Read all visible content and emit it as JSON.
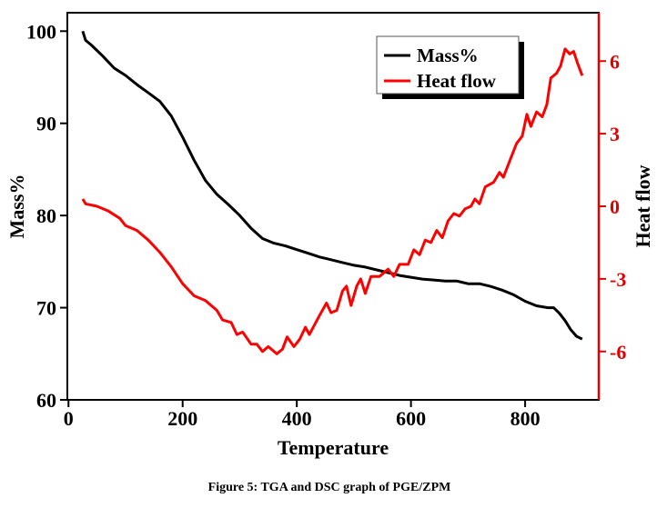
{
  "chart_data": {
    "type": "line",
    "caption": "Figure 5: TGA and DSC graph of PGE/ZPM",
    "xlabel": "Temperature",
    "ylabel": "Mass%",
    "y2label": "Heat flow",
    "xlim": [
      -2,
      929
    ],
    "ylim": [
      60,
      102
    ],
    "y2lim": [
      -8,
      8
    ],
    "xticks": [
      0,
      200,
      400,
      600,
      800
    ],
    "yticks": [
      60,
      70,
      80,
      90,
      100
    ],
    "y2ticks": [
      -6,
      -3,
      0,
      3,
      6
    ],
    "grid": false,
    "legend_position": "top-right",
    "colors": {
      "mass": "#000000",
      "heat": "#ff0000",
      "right_axis": "#e00000"
    },
    "series": [
      {
        "name": "Mass%",
        "axis": "left",
        "points": [
          [
            25,
            100
          ],
          [
            30,
            99
          ],
          [
            40,
            98.5
          ],
          [
            60,
            97.3
          ],
          [
            80,
            96
          ],
          [
            100,
            95.2
          ],
          [
            120,
            94.2
          ],
          [
            140,
            93.3
          ],
          [
            160,
            92.4
          ],
          [
            180,
            90.8
          ],
          [
            200,
            88.5
          ],
          [
            220,
            86
          ],
          [
            240,
            83.8
          ],
          [
            260,
            82.3
          ],
          [
            280,
            81.2
          ],
          [
            300,
            80
          ],
          [
            320,
            78.6
          ],
          [
            340,
            77.5
          ],
          [
            360,
            77
          ],
          [
            380,
            76.7
          ],
          [
            400,
            76.3
          ],
          [
            420,
            75.9
          ],
          [
            440,
            75.5
          ],
          [
            460,
            75.2
          ],
          [
            480,
            74.9
          ],
          [
            500,
            74.6
          ],
          [
            520,
            74.4
          ],
          [
            540,
            74.1
          ],
          [
            560,
            73.8
          ],
          [
            580,
            73.5
          ],
          [
            600,
            73.3
          ],
          [
            620,
            73.1
          ],
          [
            640,
            73
          ],
          [
            660,
            72.9
          ],
          [
            680,
            72.9
          ],
          [
            700,
            72.6
          ],
          [
            720,
            72.6
          ],
          [
            740,
            72.3
          ],
          [
            760,
            71.9
          ],
          [
            780,
            71.4
          ],
          [
            800,
            70.7
          ],
          [
            820,
            70.2
          ],
          [
            840,
            70
          ],
          [
            850,
            70
          ],
          [
            860,
            69.4
          ],
          [
            870,
            68.6
          ],
          [
            880,
            67.6
          ],
          [
            890,
            66.9
          ],
          [
            900,
            66.6
          ]
        ]
      },
      {
        "name": "Heat flow",
        "axis": "right",
        "points": [
          [
            25,
            0.3
          ],
          [
            30,
            0.1
          ],
          [
            50,
            0
          ],
          [
            70,
            -0.2
          ],
          [
            90,
            -0.5
          ],
          [
            100,
            -0.8
          ],
          [
            120,
            -1.0
          ],
          [
            140,
            -1.4
          ],
          [
            160,
            -1.9
          ],
          [
            180,
            -2.5
          ],
          [
            200,
            -3.2
          ],
          [
            220,
            -3.7
          ],
          [
            240,
            -3.9
          ],
          [
            260,
            -4.3
          ],
          [
            270,
            -4.7
          ],
          [
            285,
            -4.8
          ],
          [
            295,
            -5.3
          ],
          [
            305,
            -5.2
          ],
          [
            320,
            -5.7
          ],
          [
            330,
            -5.7
          ],
          [
            340,
            -6.0
          ],
          [
            350,
            -5.8
          ],
          [
            365,
            -6.1
          ],
          [
            375,
            -5.9
          ],
          [
            383,
            -5.4
          ],
          [
            395,
            -5.8
          ],
          [
            405,
            -5.5
          ],
          [
            415,
            -5.0
          ],
          [
            422,
            -5.3
          ],
          [
            440,
            -4.5
          ],
          [
            452,
            -4.0
          ],
          [
            460,
            -4.4
          ],
          [
            470,
            -4.3
          ],
          [
            480,
            -3.5
          ],
          [
            487,
            -3.3
          ],
          [
            495,
            -4.1
          ],
          [
            505,
            -3.3
          ],
          [
            512,
            -3.0
          ],
          [
            520,
            -3.6
          ],
          [
            530,
            -2.9
          ],
          [
            545,
            -2.9
          ],
          [
            560,
            -2.6
          ],
          [
            570,
            -2.9
          ],
          [
            580,
            -2.4
          ],
          [
            595,
            -2.4
          ],
          [
            605,
            -1.8
          ],
          [
            615,
            -2.0
          ],
          [
            625,
            -1.4
          ],
          [
            635,
            -1.5
          ],
          [
            645,
            -1.0
          ],
          [
            655,
            -1.3
          ],
          [
            665,
            -0.6
          ],
          [
            675,
            -0.3
          ],
          [
            685,
            -0.4
          ],
          [
            695,
            -0.1
          ],
          [
            705,
            0.0
          ],
          [
            712,
            0.3
          ],
          [
            720,
            0.1
          ],
          [
            730,
            0.8
          ],
          [
            745,
            1.0
          ],
          [
            755,
            1.4
          ],
          [
            762,
            1.2
          ],
          [
            775,
            2.0
          ],
          [
            785,
            2.6
          ],
          [
            795,
            2.9
          ],
          [
            803,
            3.8
          ],
          [
            810,
            3.3
          ],
          [
            820,
            3.9
          ],
          [
            830,
            3.7
          ],
          [
            838,
            4.2
          ],
          [
            845,
            5.3
          ],
          [
            855,
            5.5
          ],
          [
            862,
            5.8
          ],
          [
            870,
            6.5
          ],
          [
            878,
            6.3
          ],
          [
            885,
            6.4
          ],
          [
            892,
            5.9
          ],
          [
            900,
            5.4
          ]
        ]
      }
    ]
  }
}
